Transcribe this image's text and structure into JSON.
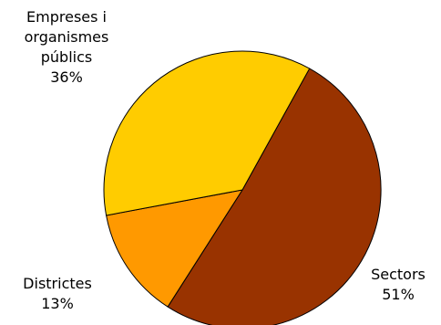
{
  "chart_data": {
    "type": "pie",
    "slices": [
      {
        "label": "Sectors",
        "line1": "Sectors",
        "line2": "",
        "line3": "",
        "pct_text": "51%",
        "value": 51,
        "color": "#993300"
      },
      {
        "label": "Districtes",
        "line1": "Districtes",
        "line2": "",
        "line3": "",
        "pct_text": "13%",
        "value": 13,
        "color": "#ff9900"
      },
      {
        "label": "Empreses i organismes públics",
        "line1": "Empreses i",
        "line2": "organismes",
        "line3": "públics",
        "pct_text": "36%",
        "value": 36,
        "color": "#ffcc00"
      }
    ],
    "start_angle_deg": 29,
    "direction": "clockwise"
  }
}
